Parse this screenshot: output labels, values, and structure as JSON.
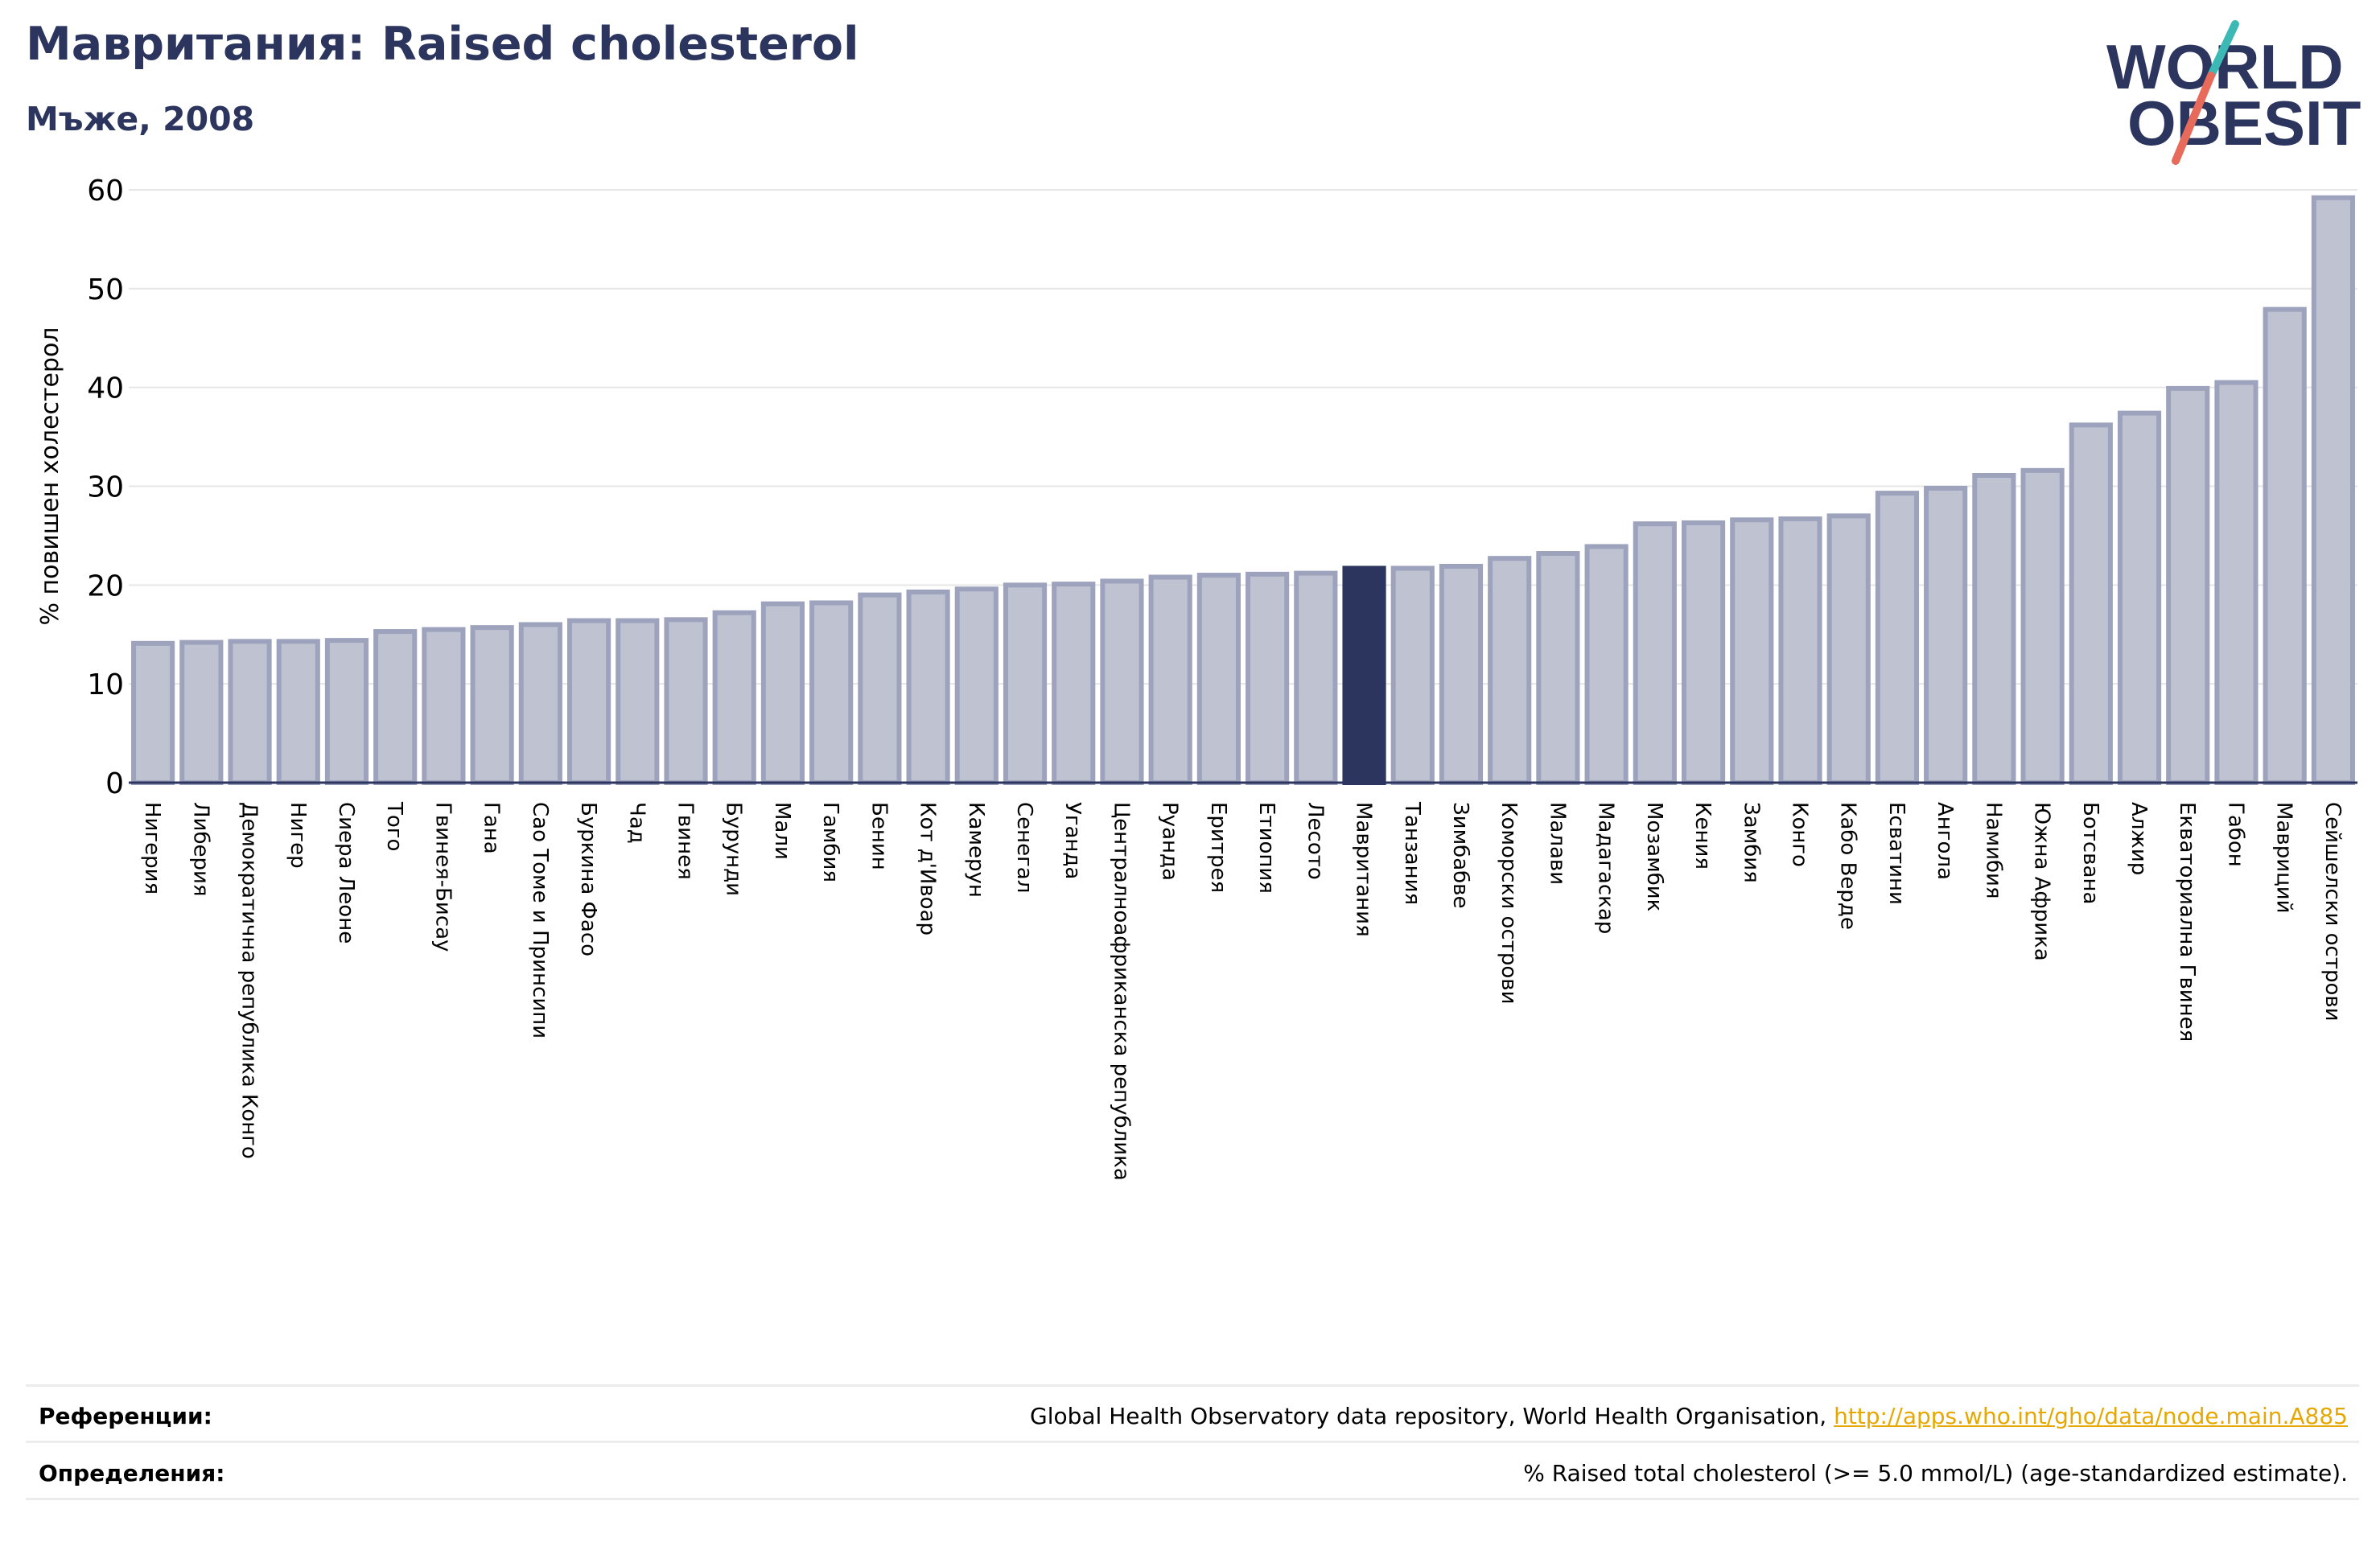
{
  "header": {
    "title": "Мавритания: Raised cholesterol",
    "subtitle": "Мъже, 2008"
  },
  "logo": {
    "line1": "WORLD",
    "line2": "OBESITY",
    "colors": {
      "text": "#2b355e",
      "slash_teal": "#3cb8b5",
      "slash_red": "#e86a5a"
    }
  },
  "chart_data": {
    "type": "bar",
    "ylabel": "% повишен холестерол",
    "xlabel": "",
    "ylim": [
      0,
      60
    ],
    "yticks": [
      0,
      10,
      20,
      30,
      40,
      50,
      60
    ],
    "grid": true,
    "highlight": "Мавритания",
    "colors": {
      "bar": "#bfc2d1",
      "bar_edge": "#9ea3bd",
      "highlight": "#2b355e"
    },
    "categories": [
      "Нигерия",
      "Либерия",
      "Демократична република Конго",
      "Нигер",
      "Сиера Леоне",
      "Того",
      "Гвинея-Бисау",
      "Гана",
      "Сао Томе и Принсипи",
      "Буркина Фасо",
      "Чад",
      "Гвинея",
      "Бурунди",
      "Мали",
      "Гамбия",
      "Бенин",
      "Кот д'Ивоар",
      "Камерун",
      "Сенегал",
      "Уганда",
      "Централноафриканска република",
      "Руанда",
      "Еритрея",
      "Етиопия",
      "Лесото",
      "Мавритания",
      "Танзания",
      "Зимбабве",
      "Коморски острови",
      "Малави",
      "Мадагаскар",
      "Мозамбик",
      "Кения",
      "Замбия",
      "Конго",
      "Кабо Верде",
      "Есватини",
      "Ангола",
      "Намибия",
      "Южна Африка",
      "Ботсвана",
      "Алжир",
      "Екваториална Гвинея",
      "Габон",
      "Мавриций",
      "Сейшелски острови"
    ],
    "values": [
      14.1,
      14.2,
      14.3,
      14.3,
      14.4,
      15.3,
      15.5,
      15.7,
      16.0,
      16.4,
      16.4,
      16.5,
      17.2,
      18.1,
      18.2,
      19.0,
      19.3,
      19.6,
      20.0,
      20.1,
      20.4,
      20.8,
      21.0,
      21.1,
      21.2,
      21.7,
      21.7,
      21.9,
      22.7,
      23.2,
      23.9,
      26.2,
      26.3,
      26.6,
      26.7,
      27.0,
      29.3,
      29.8,
      31.1,
      31.6,
      36.2,
      37.4,
      39.9,
      40.5,
      47.9,
      59.2
    ]
  },
  "footer": {
    "references_label": "Референции:",
    "references_text": "Global Health Observatory data repository, World Health Organisation, ",
    "references_link": "http://apps.who.int/gho/data/node.main.A885",
    "definitions_label": "Определения:",
    "definitions_text": "% Raised total cholesterol (>= 5.0 mmol/L) (age-standardized estimate)."
  }
}
